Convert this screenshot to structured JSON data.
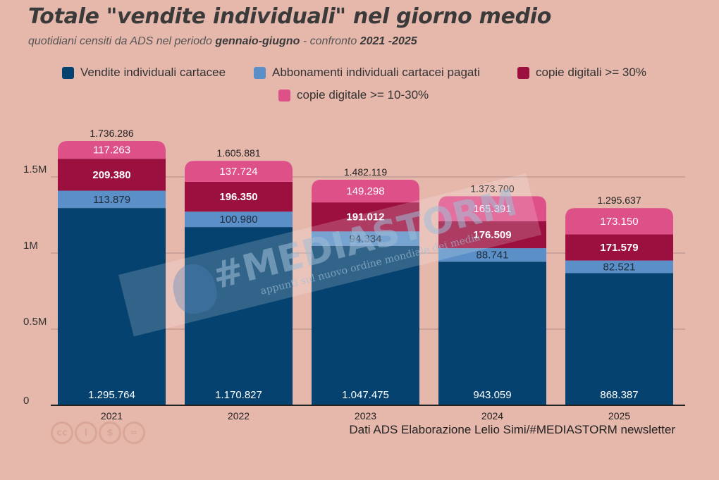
{
  "header": {
    "title": "Totale \"vendite individuali\" nel giorno medio",
    "subtitle_pre": "quotidiani censiti da ADS nel periodo ",
    "subtitle_bold1": "gennaio-giugno",
    "subtitle_mid": " - confronto ",
    "subtitle_bold2": "2021 -2025"
  },
  "footer": {
    "credits": "Dati ADS  Elaborazione Lelio Simi/#MEDIASTORM newsletter",
    "cc_icons": [
      "cc",
      "i",
      "$",
      "="
    ]
  },
  "watermark": {
    "text": "#MEDIASTORM",
    "sub": "appunti sul nuovo ordine mondiale dei media"
  },
  "colors": {
    "cartacee": "#05426f",
    "abbonamenti": "#5a8fc7",
    "digitali30": "#9c1040",
    "digitali10": "#de5088",
    "axis": "#222222",
    "grid": "#b08d86"
  },
  "chart_data": {
    "type": "bar",
    "stacked": true,
    "categories": [
      "2021",
      "2022",
      "2023",
      "2024",
      "2025"
    ],
    "series": [
      {
        "name": "Vendite individuali cartacee",
        "labels": [
          "1.295.764",
          "1.170.827",
          "1.047.475",
          "943.059",
          "868.387"
        ],
        "values": [
          1295764,
          1170827,
          1047475,
          943059,
          868387
        ]
      },
      {
        "name": "Abbonamenti individuali cartacei pagati",
        "labels": [
          "113.879",
          "100.980",
          "94.334",
          "88.741",
          "82.521"
        ],
        "values": [
          113879,
          100980,
          94334,
          88741,
          82521
        ]
      },
      {
        "name": "copie digitali >= 30%",
        "labels": [
          "209.380",
          "196.350",
          "191.012",
          "176.509",
          "171.579"
        ],
        "values": [
          209380,
          196350,
          191012,
          176509,
          171579
        ]
      },
      {
        "name": "copie digitale >= 10-30%",
        "labels": [
          "117.263",
          "137.724",
          "149.298",
          "165.391",
          "173.150"
        ],
        "values": [
          117263,
          137724,
          149298,
          165391,
          173150
        ]
      }
    ],
    "totals": [
      "1.736.286",
      "1.605.881",
      "1.482.119",
      "1.373.700",
      "1.295.637"
    ],
    "total_values": [
      1736286,
      1605881,
      1482119,
      1373700,
      1295637
    ],
    "y_ticks": [
      0,
      500000,
      1000000,
      1500000
    ],
    "y_tick_labels": [
      "0",
      "0.5M",
      "1M",
      "1.5M"
    ],
    "ylim": [
      0,
      1800000
    ],
    "grid": true,
    "legend_position": "top",
    "title": "Totale \"vendite individuali\" nel giorno medio"
  }
}
